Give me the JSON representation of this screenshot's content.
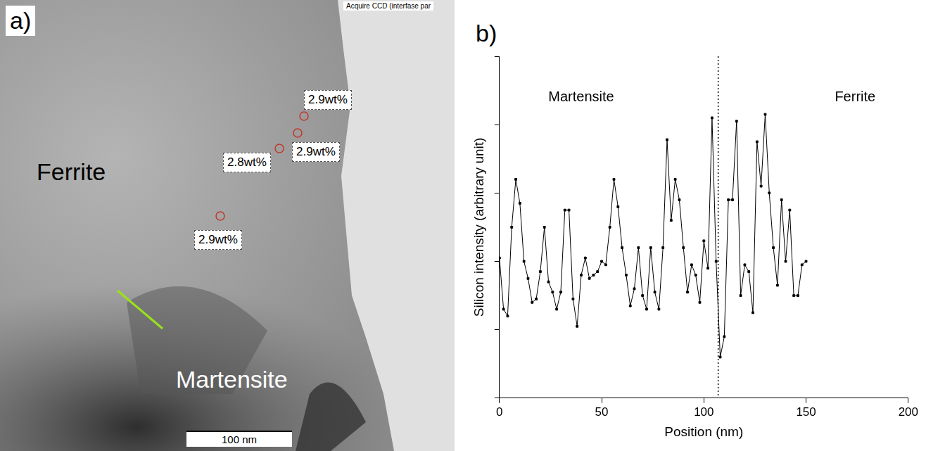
{
  "panel_a": {
    "label": "a)",
    "header": "Acquire CCD (interfase par",
    "regions": [
      "Ferrite",
      "Martensite"
    ],
    "measurements": [
      "2.9wt%",
      "2.9wt%",
      "2.8wt%",
      "2.9wt%"
    ],
    "scale_bar": "100 nm"
  },
  "panel_b_label": "b)",
  "chart_data": {
    "type": "line",
    "x_label": "Position (nm)",
    "y_label": "Silicon intensity (arbitrary unit)",
    "x": [
      0,
      2,
      4,
      6,
      8,
      10,
      12,
      14,
      16,
      18,
      20,
      22,
      24,
      26,
      28,
      30,
      32,
      34,
      36,
      38,
      40,
      42,
      44,
      46,
      48,
      50,
      52,
      54,
      56,
      58,
      60,
      62,
      64,
      66,
      68,
      70,
      72,
      74,
      76,
      78,
      80,
      82,
      84,
      86,
      88,
      90,
      92,
      94,
      96,
      98,
      100,
      102,
      104,
      106,
      108,
      110,
      112,
      114,
      116,
      118,
      120,
      122,
      124,
      126,
      128,
      130,
      132,
      134,
      136,
      138,
      140,
      142,
      144,
      146,
      148,
      150
    ],
    "series": [
      {
        "name": "Silicon",
        "color": "#000000",
        "marker": "square",
        "line_style": "solid",
        "values": [
          2.05,
          1.3,
          1.2,
          2.5,
          3.2,
          2.85,
          2.0,
          1.75,
          1.4,
          1.45,
          1.85,
          2.5,
          1.7,
          1.55,
          1.3,
          1.55,
          2.75,
          2.75,
          1.45,
          1.05,
          1.8,
          2.05,
          1.75,
          1.8,
          1.85,
          2.0,
          1.95,
          2.5,
          3.2,
          2.8,
          2.2,
          1.8,
          1.35,
          1.6,
          2.2,
          1.5,
          1.3,
          2.2,
          1.55,
          1.3,
          2.2,
          3.78,
          2.6,
          3.2,
          2.9,
          2.2,
          1.55,
          1.95,
          1.8,
          1.4,
          2.3,
          1.9,
          4.1,
          2.0,
          0.6,
          0.9,
          2.9,
          2.9,
          4.05,
          1.5,
          1.95,
          1.85,
          1.25,
          3.75,
          3.1,
          4.15,
          3.0,
          2.2,
          1.65,
          2.9,
          2.0,
          2.75,
          1.5,
          1.5,
          1.95,
          2.0
        ]
      }
    ],
    "xlim": [
      0,
      200
    ],
    "xticks": [
      0,
      50,
      100,
      150,
      200
    ],
    "ylim": [
      0,
      5
    ],
    "yticks": [
      0,
      1,
      2,
      3,
      4,
      5
    ],
    "tick_labels": "x",
    "grid": false,
    "divider_x": 107,
    "annotations": [
      {
        "text": "Martensite",
        "x": 40,
        "y": 4.4
      },
      {
        "text": "Ferrite",
        "x": 174,
        "y": 4.4
      }
    ]
  }
}
